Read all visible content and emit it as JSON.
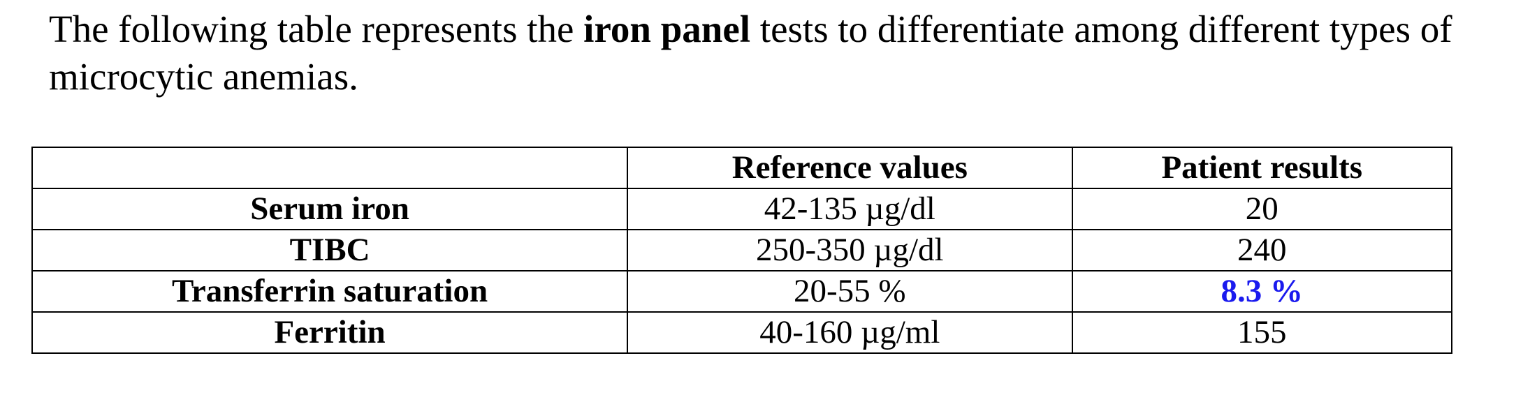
{
  "paragraph": {
    "before": "The following table represents the ",
    "bold": "iron panel",
    "after": " tests to differentiate among different types of microcytic anemias."
  },
  "table": {
    "header": [
      "Reference values",
      "Patient results"
    ],
    "rows": [
      [
        "Serum iron",
        "42-135 µg/dl",
        "20"
      ],
      [
        "TIBC",
        "250-350 µg/dl",
        "240"
      ],
      [
        "Transferrin saturation",
        "20-55 %",
        "8.3 %"
      ],
      [
        "Ferritin",
        "40-160 µg/ml",
        "155"
      ]
    ]
  }
}
